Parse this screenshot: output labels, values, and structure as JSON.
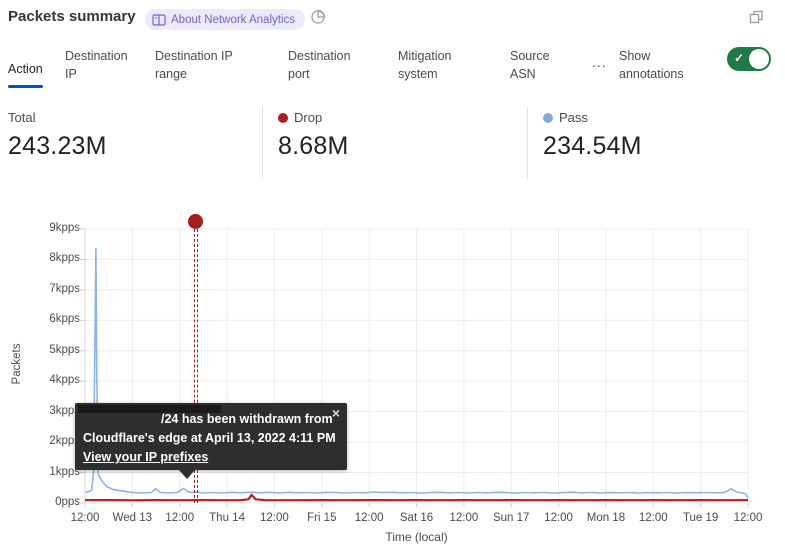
{
  "header": {
    "title": "Packets summary",
    "badge_label": "About Network Analytics",
    "badge_color": "#6a66d4",
    "badge_bg": "#edeafc"
  },
  "tabs": {
    "items": [
      {
        "label": "Action",
        "active": true
      },
      {
        "label": "Destination IP",
        "active": false
      },
      {
        "label": "Destination IP range",
        "active": false
      },
      {
        "label": "Destination port",
        "active": false
      },
      {
        "label": "Mitigation system",
        "active": false
      },
      {
        "label": "Source ASN",
        "active": false
      }
    ],
    "more_label": "...",
    "annotations_label": "Show annotations",
    "toggle_on": true,
    "active_underline_color": "#0052c2",
    "toggle_color": "#1e7b47"
  },
  "stats": [
    {
      "label": "Total",
      "value": "243.23M",
      "dot": null
    },
    {
      "label": "Drop",
      "value": "8.68M",
      "dot": "#b01b1b"
    },
    {
      "label": "Pass",
      "value": "234.54M",
      "dot": "#7fabe3"
    }
  ],
  "tooltip": {
    "prefix_redacted": true,
    "line1": "/24 has been withdrawn from",
    "line2": "Cloudflare's edge at April 13, 2022 4:11 PM",
    "link": "View your IP prefixes",
    "close": "×"
  },
  "chart_data": {
    "type": "line",
    "title": "Packets summary",
    "xlabel": "Time (local)",
    "ylabel": "Packets",
    "ylim": [
      0,
      9000
    ],
    "x_range": [
      0,
      14
    ],
    "grid": true,
    "legend_position": "none",
    "ytick_labels": [
      "0pps",
      "1kpps",
      "2kpps",
      "3kpps",
      "4kpps",
      "5kpps",
      "6kpps",
      "7kpps",
      "8kpps",
      "9kpps"
    ],
    "xtick_labels": [
      "12:00",
      "Wed 13",
      "12:00",
      "Thu 14",
      "12:00",
      "Fri 15",
      "12:00",
      "Sat 16",
      "12:00",
      "Sun 17",
      "12:00",
      "Mon 18",
      "12:00",
      "Tue 19",
      "12:00"
    ],
    "series": [
      {
        "name": "Pass",
        "color": "#8ab4ea",
        "unit": "pps",
        "points": [
          [
            0,
            360
          ],
          [
            0.08,
            370
          ],
          [
            0.14,
            420
          ],
          [
            0.18,
            1000
          ],
          [
            0.21,
            5200
          ],
          [
            0.23,
            8350
          ],
          [
            0.25,
            4200
          ],
          [
            0.28,
            950
          ],
          [
            0.32,
            820
          ],
          [
            0.38,
            680
          ],
          [
            0.46,
            540
          ],
          [
            0.6,
            440
          ],
          [
            0.8,
            390
          ],
          [
            1.0,
            345
          ],
          [
            1.2,
            330
          ],
          [
            1.4,
            345
          ],
          [
            1.49,
            470
          ],
          [
            1.58,
            350
          ],
          [
            1.75,
            330
          ],
          [
            1.95,
            345
          ],
          [
            2.08,
            480
          ],
          [
            2.2,
            350
          ],
          [
            2.34,
            365
          ],
          [
            2.5,
            330
          ],
          [
            2.7,
            345
          ],
          [
            2.9,
            330
          ],
          [
            3.1,
            350
          ],
          [
            3.3,
            335
          ],
          [
            3.5,
            355
          ],
          [
            3.7,
            335
          ],
          [
            3.9,
            350
          ],
          [
            4.1,
            330
          ],
          [
            4.3,
            350
          ],
          [
            4.5,
            335
          ],
          [
            4.7,
            345
          ],
          [
            4.9,
            330
          ],
          [
            5.1,
            350
          ],
          [
            5.3,
            340
          ],
          [
            5.5,
            330
          ],
          [
            5.7,
            345
          ],
          [
            5.9,
            335
          ],
          [
            6.1,
            360
          ],
          [
            6.3,
            340
          ],
          [
            6.5,
            350
          ],
          [
            6.7,
            335
          ],
          [
            6.9,
            345
          ],
          [
            7.1,
            330
          ],
          [
            7.3,
            340
          ],
          [
            7.5,
            350
          ],
          [
            7.7,
            335
          ],
          [
            7.9,
            345
          ],
          [
            8.1,
            330
          ],
          [
            8.3,
            345
          ],
          [
            8.5,
            335
          ],
          [
            8.7,
            350
          ],
          [
            8.9,
            340
          ],
          [
            9.1,
            330
          ],
          [
            9.3,
            345
          ],
          [
            9.5,
            335
          ],
          [
            9.7,
            345
          ],
          [
            9.9,
            330
          ],
          [
            10.1,
            340
          ],
          [
            10.3,
            350
          ],
          [
            10.5,
            335
          ],
          [
            10.7,
            345
          ],
          [
            10.9,
            330
          ],
          [
            11.1,
            340
          ],
          [
            11.3,
            335
          ],
          [
            11.5,
            345
          ],
          [
            11.7,
            330
          ],
          [
            11.9,
            340
          ],
          [
            12.1,
            335
          ],
          [
            12.3,
            345
          ],
          [
            12.5,
            330
          ],
          [
            12.7,
            340
          ],
          [
            12.9,
            335
          ],
          [
            13.1,
            345
          ],
          [
            13.3,
            335
          ],
          [
            13.5,
            340
          ],
          [
            13.65,
            465
          ],
          [
            13.75,
            360
          ],
          [
            13.85,
            340
          ],
          [
            13.95,
            300
          ],
          [
            14,
            160
          ]
        ]
      },
      {
        "name": "Drop",
        "color": "#b82222",
        "unit": "pps",
        "points": [
          [
            0,
            95
          ],
          [
            0.5,
            95
          ],
          [
            1,
            90
          ],
          [
            1.5,
            95
          ],
          [
            2,
            92
          ],
          [
            2.5,
            95
          ],
          [
            3,
            92
          ],
          [
            3.3,
            95
          ],
          [
            3.45,
            120
          ],
          [
            3.52,
            270
          ],
          [
            3.6,
            120
          ],
          [
            3.8,
            95
          ],
          [
            4.5,
            92
          ],
          [
            5,
            95
          ],
          [
            5.5,
            92
          ],
          [
            6,
            95
          ],
          [
            6.5,
            92
          ],
          [
            7,
            95
          ],
          [
            7.5,
            92
          ],
          [
            8,
            95
          ],
          [
            8.5,
            92
          ],
          [
            9,
            95
          ],
          [
            9.5,
            92
          ],
          [
            10,
            95
          ],
          [
            10.5,
            92
          ],
          [
            11,
            95
          ],
          [
            11.5,
            92
          ],
          [
            12,
            95
          ],
          [
            12.5,
            92
          ],
          [
            13,
            95
          ],
          [
            13.5,
            92
          ],
          [
            14,
            95
          ]
        ]
      }
    ],
    "annotation": {
      "t": 2.34,
      "line_color": "#a51d1d",
      "dot_color": "#a51d1d"
    }
  }
}
